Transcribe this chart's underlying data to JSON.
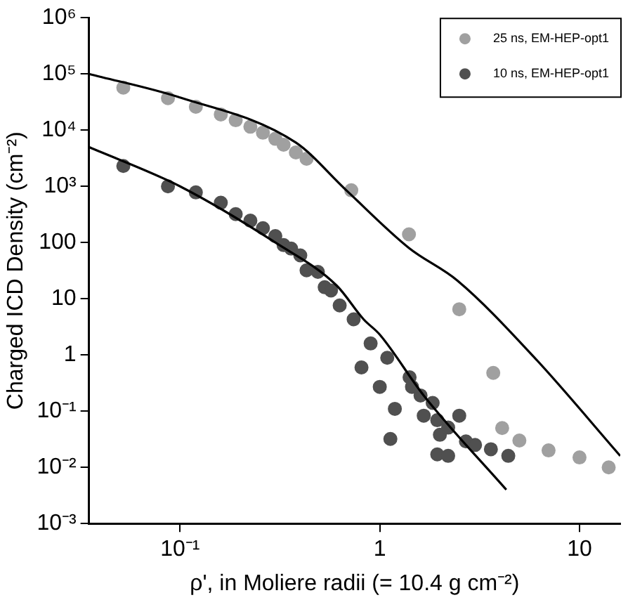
{
  "chart_data": {
    "type": "scatter",
    "xlabel": "ρ', in Moliere radii (= 10.4 g cm⁻²)",
    "ylabel": "Charged ICD Density (cm⁻²)",
    "log": "xy",
    "xlim": [
      0.035,
      16
    ],
    "ylim": [
      0.001,
      1000000
    ],
    "xticks": [
      {
        "value": 0.1,
        "label": "10⁻¹"
      },
      1,
      10
    ],
    "yticks": [
      {
        "value": 0.001,
        "label": "10⁻³"
      },
      {
        "value": 0.01,
        "label": "10⁻²"
      },
      {
        "value": 0.1,
        "label": "10⁻¹"
      },
      1,
      10,
      100,
      {
        "value": 1000,
        "label": "10³"
      },
      {
        "value": 10000,
        "label": "10⁴"
      },
      {
        "value": 100000,
        "label": "10⁵"
      },
      {
        "value": 1000000,
        "label": "10⁶"
      }
    ],
    "grid": false,
    "legend": "top right",
    "marker": "circle",
    "series": [
      {
        "name": "25 ns, EM-HEP-opt1",
        "color": "#a0a0a0",
        "x": [
          0.052,
          0.087,
          0.12,
          0.16,
          0.19,
          0.225,
          0.26,
          0.3,
          0.33,
          0.38,
          0.43,
          0.72,
          1.4,
          2.5,
          3.7,
          4.1,
          5,
          7,
          10,
          14
        ],
        "values": [
          57000,
          37000,
          26000,
          19000,
          15000,
          11500,
          9000,
          7000,
          5500,
          4000,
          3100,
          850,
          140,
          6.5,
          0.48,
          0.05,
          0.03,
          0.02,
          0.015,
          0.01
        ]
      },
      {
        "name": "10 ns, EM-HEP-opt1",
        "color": "#505050",
        "x": [
          0.052,
          0.087,
          0.12,
          0.16,
          0.19,
          0.225,
          0.26,
          0.3,
          0.33,
          0.36,
          0.4,
          0.43,
          0.49,
          0.53,
          0.57,
          0.63,
          0.74,
          0.81,
          0.9,
          1.0,
          1.09,
          1.13,
          1.19,
          1.41,
          1.45,
          1.6,
          1.66,
          1.84,
          1.94,
          1.94,
          2.0,
          2.2,
          2.2,
          2.5,
          2.7,
          3.0,
          3.6,
          4.4
        ],
        "values": [
          2300,
          1000,
          780,
          510,
          320,
          245,
          180,
          130,
          90,
          78,
          59,
          32,
          30,
          16,
          14,
          7.6,
          4.3,
          0.6,
          1.6,
          0.27,
          0.89,
          0.032,
          0.11,
          0.4,
          0.27,
          0.19,
          0.083,
          0.14,
          0.069,
          0.017,
          0.038,
          0.051,
          0.016,
          0.083,
          0.029,
          0.025,
          0.021,
          0.016
        ]
      },
      {
        "type": "line",
        "color": "#000000",
        "marker": "none",
        "x": [
          0.035,
          0.1,
          0.38,
          0.68,
          1.4,
          2.45,
          6,
          16
        ],
        "values": [
          100000,
          38000,
          6000,
          850,
          80,
          21,
          0.87,
          0.016
        ]
      },
      {
        "type": "line",
        "color": "#000000",
        "marker": "none",
        "x": [
          0.035,
          0.1,
          0.3,
          0.61,
          0.83,
          1.0,
          1.66,
          4.3
        ],
        "values": [
          5000,
          1000,
          100,
          17,
          4.3,
          2.3,
          0.19,
          0.004
        ]
      }
    ]
  }
}
